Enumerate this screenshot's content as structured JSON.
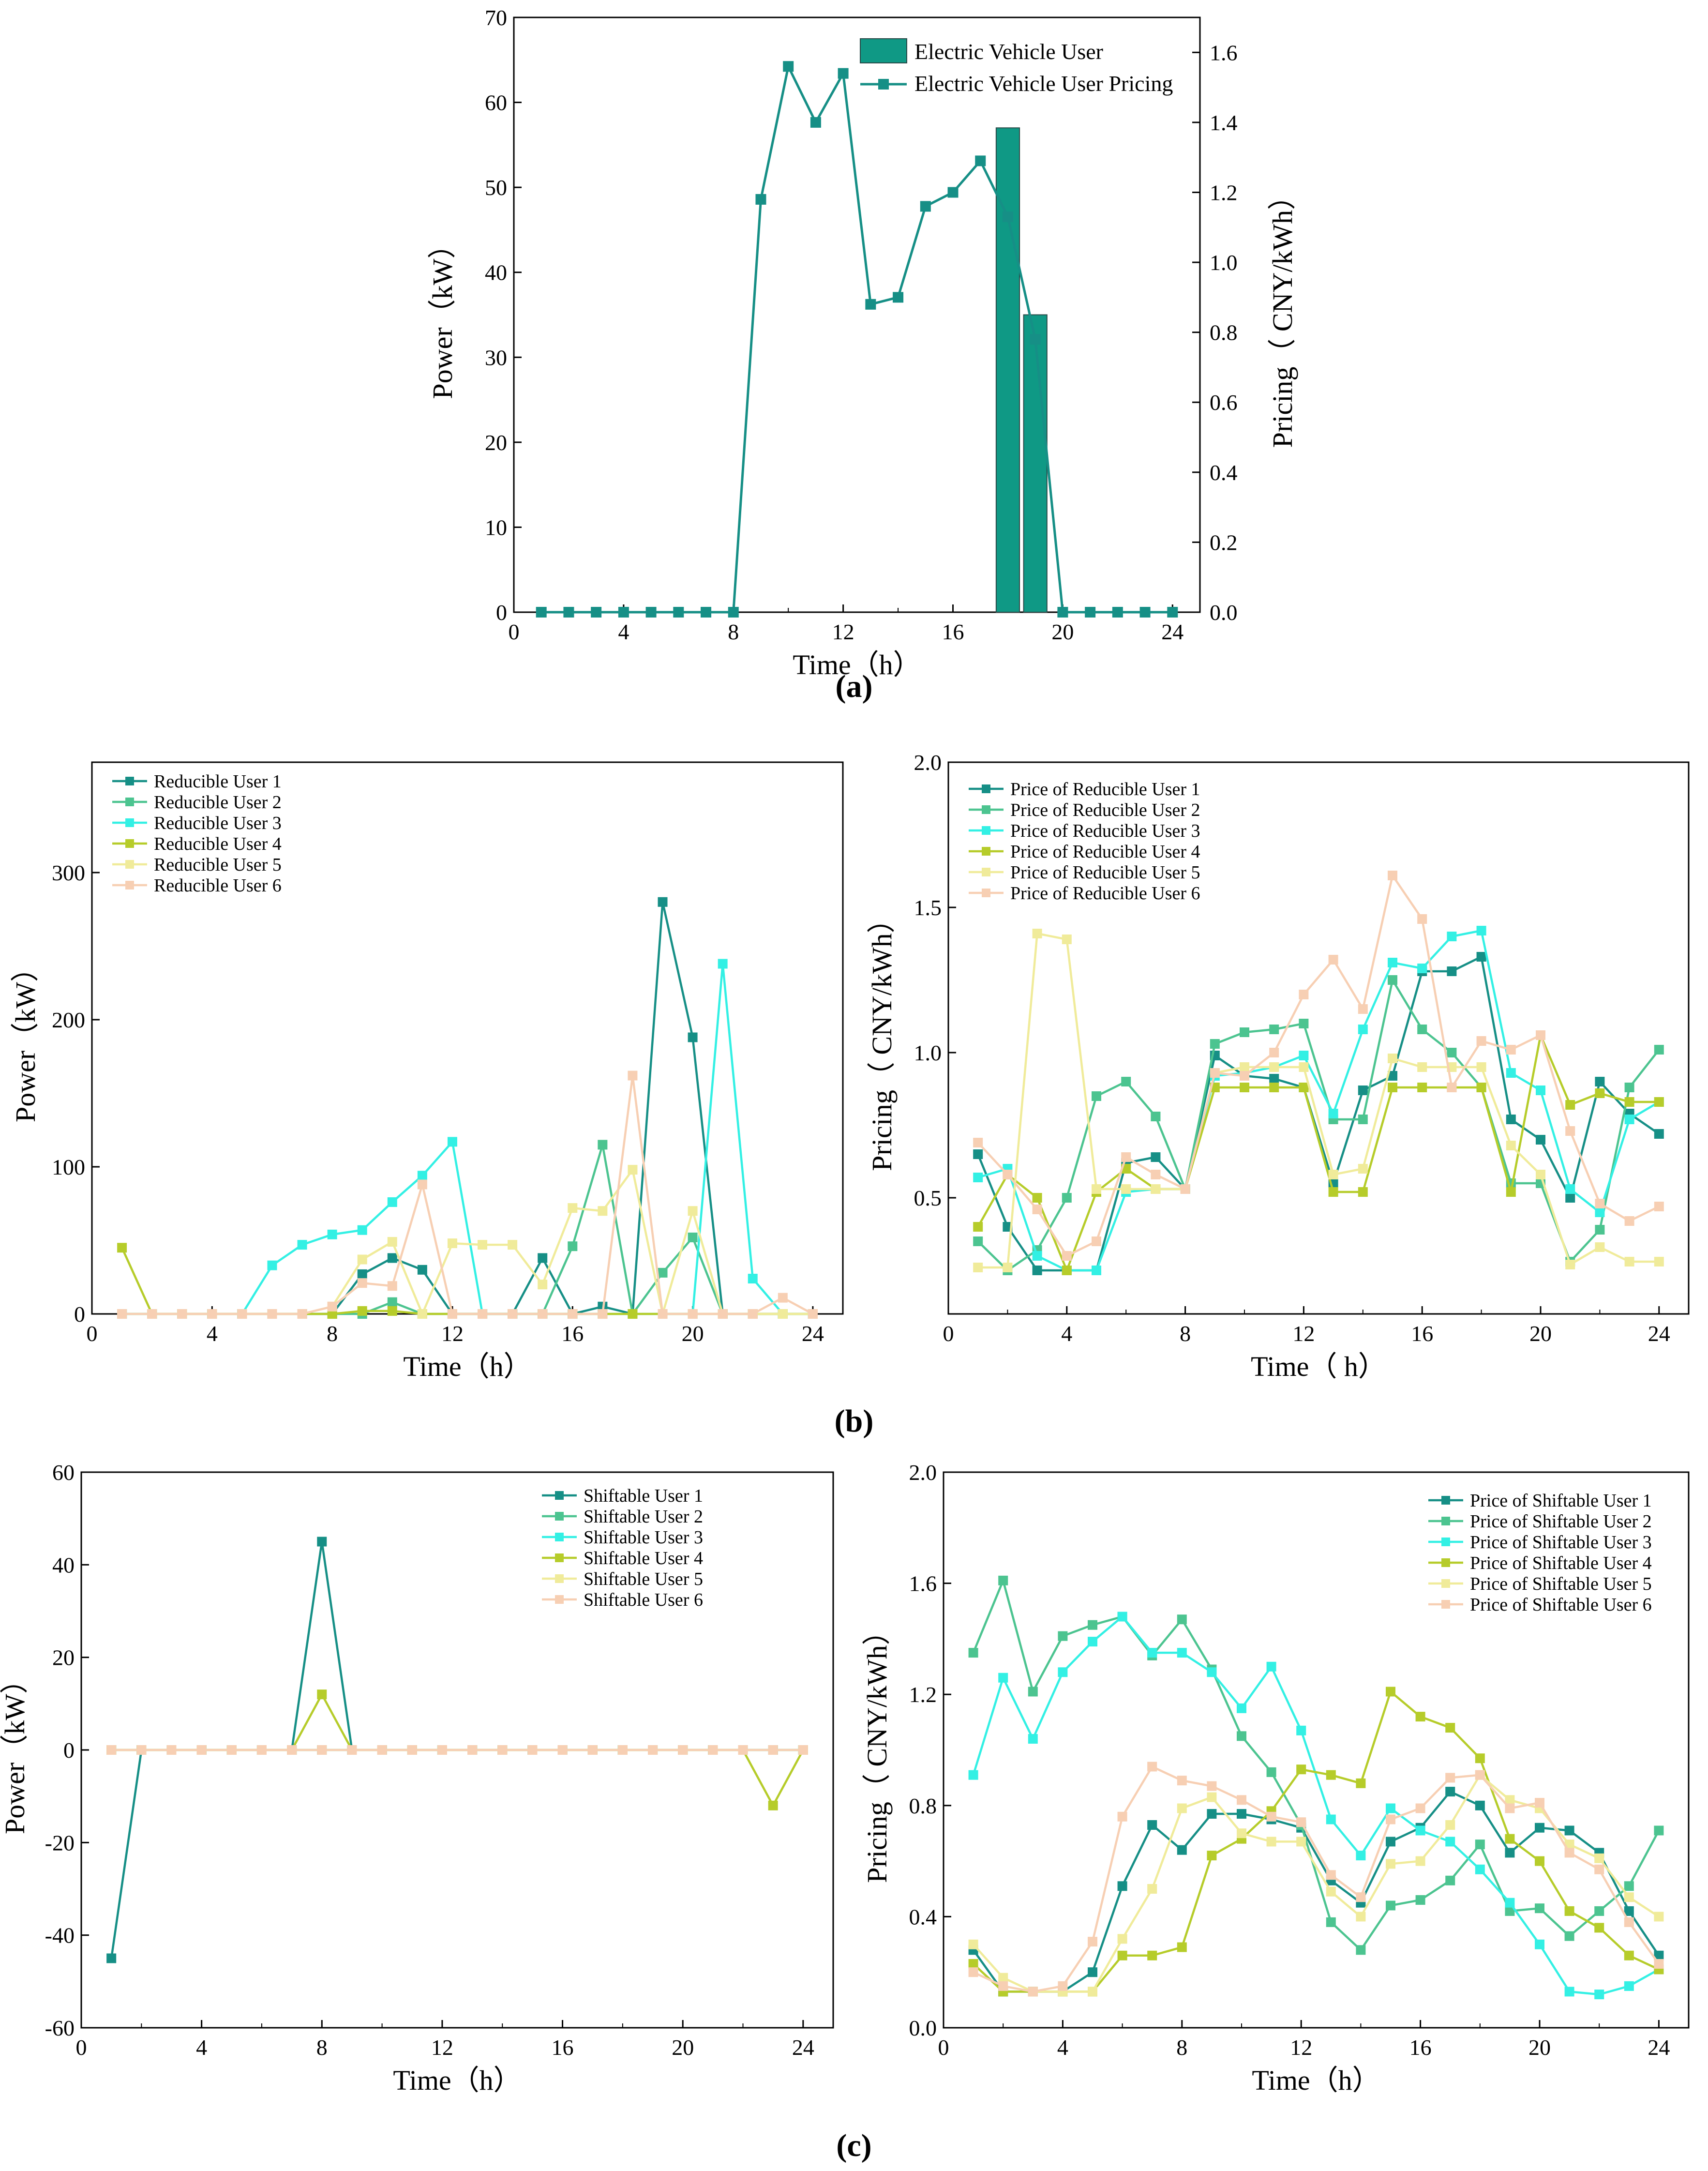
{
  "colors": {
    "palette": [
      "#168f86",
      "#4cc490",
      "#33f0e4",
      "#b6cc2a",
      "#f0eb9a",
      "#f7cfb3"
    ],
    "bar": "#0f9985",
    "bar_edge": "#2a4a48",
    "line_a": "#168f86"
  },
  "chart_data": [
    {
      "id": "a",
      "type": "bar+line",
      "caption": "(a)",
      "xlabel": "Time（h）",
      "ylabel": "Power（kW）",
      "y2label": "Pricing（ CNY/kWh）",
      "xlim": [
        0,
        25
      ],
      "ylim": [
        0,
        70
      ],
      "y2lim": [
        0,
        1.7
      ],
      "xticks": [
        "0",
        "4",
        "8",
        "12",
        "16",
        "20",
        "24"
      ],
      "yticks": [
        "0",
        "10",
        "20",
        "30",
        "40",
        "50",
        "60",
        "70"
      ],
      "y2ticks": [
        "0.0",
        "0.2",
        "0.4",
        "0.6",
        "0.8",
        "1.0",
        "1.2",
        "1.4",
        "1.6"
      ],
      "legend": [
        "Electric Vehicle User",
        "Electric Vehicle User Pricing"
      ],
      "bars": {
        "name": "Electric Vehicle User",
        "x": [
          18,
          19
        ],
        "values": [
          57,
          35
        ]
      },
      "line": {
        "name": "Electric Vehicle User Pricing",
        "x": [
          1,
          2,
          3,
          4,
          5,
          6,
          7,
          8,
          9,
          10,
          11,
          12,
          13,
          14,
          15,
          16,
          17,
          18,
          19,
          20,
          21,
          22,
          23,
          24
        ],
        "values": [
          0,
          0,
          0,
          0,
          0,
          0,
          0,
          0,
          1.18,
          1.56,
          1.4,
          1.54,
          0.88,
          0.9,
          1.16,
          1.2,
          1.29,
          1.13,
          0.78,
          0,
          0,
          0,
          0,
          0
        ]
      }
    },
    {
      "id": "b1",
      "type": "line",
      "caption": "(b)",
      "xlabel": "Time（h）",
      "ylabel": "Power（kW）",
      "xlim": [
        0,
        25
      ],
      "ylim": [
        0,
        375
      ],
      "xticks": [
        "0",
        "4",
        "8",
        "12",
        "16",
        "20",
        "24"
      ],
      "yticks": [
        "0",
        "100",
        "200",
        "300"
      ],
      "legend": [
        "Reducible User 1",
        "Reducible User 2",
        "Reducible User 3",
        "Reducible User 4",
        "Reducible User 5",
        "Reducible User 6"
      ],
      "x": [
        1,
        2,
        3,
        4,
        5,
        6,
        7,
        8,
        9,
        10,
        11,
        12,
        13,
        14,
        15,
        16,
        17,
        18,
        19,
        20,
        21,
        22,
        23,
        24
      ],
      "series": [
        {
          "name": "Reducible User 1",
          "values": [
            0,
            0,
            0,
            0,
            0,
            0,
            0,
            0,
            27,
            38,
            30,
            0,
            0,
            0,
            38,
            0,
            5,
            0,
            280,
            188,
            0,
            0,
            0,
            0
          ]
        },
        {
          "name": "Reducible User 2",
          "values": [
            0,
            0,
            0,
            0,
            0,
            0,
            0,
            0,
            0,
            8,
            0,
            0,
            0,
            0,
            0,
            46,
            115,
            0,
            28,
            52,
            0,
            0,
            0,
            0
          ]
        },
        {
          "name": "Reducible User 3",
          "values": [
            0,
            0,
            0,
            0,
            0,
            33,
            47,
            54,
            57,
            76,
            94,
            117,
            0,
            0,
            0,
            0,
            0,
            0,
            0,
            0,
            238,
            24,
            0,
            0
          ]
        },
        {
          "name": "Reducible User 4",
          "values": [
            45,
            0,
            0,
            0,
            0,
            0,
            0,
            0,
            2,
            2,
            0,
            0,
            0,
            0,
            0,
            0,
            0,
            0,
            0,
            0,
            0,
            0,
            0,
            0
          ]
        },
        {
          "name": "Reducible User 5",
          "values": [
            0,
            0,
            0,
            0,
            0,
            0,
            0,
            5,
            37,
            49,
            0,
            48,
            47,
            47,
            20,
            72,
            70,
            98,
            0,
            70,
            0,
            0,
            0,
            0
          ]
        },
        {
          "name": "Reducible User 6",
          "values": [
            0,
            0,
            0,
            0,
            0,
            0,
            0,
            5,
            21,
            19,
            88,
            0,
            0,
            0,
            0,
            0,
            0,
            162,
            0,
            0,
            0,
            0,
            11,
            0
          ]
        }
      ]
    },
    {
      "id": "b2",
      "type": "line",
      "xlabel": "Time（ h）",
      "ylabel": "Pricing（ CNY/kWh）",
      "xlim": [
        0,
        25
      ],
      "ylim": [
        0.1,
        2.0
      ],
      "xticks": [
        "0",
        "4",
        "8",
        "12",
        "16",
        "20",
        "24"
      ],
      "yticks": [
        "0.5",
        "1.0",
        "1.5",
        "2.0"
      ],
      "legend": [
        "Price of Reducible User 1",
        "Price of Reducible User 2",
        "Price of Reducible User 3",
        "Price of Reducible User 4",
        "Price of Reducible User 5",
        "Price of Reducible User 6"
      ],
      "x": [
        1,
        2,
        3,
        4,
        5,
        6,
        7,
        8,
        9,
        10,
        11,
        12,
        13,
        14,
        15,
        16,
        17,
        18,
        19,
        20,
        21,
        22,
        23,
        24
      ],
      "series": [
        {
          "name": "Price of Reducible User 1",
          "values": [
            0.65,
            0.4,
            0.25,
            0.25,
            0.25,
            0.62,
            0.64,
            0.53,
            0.99,
            0.92,
            0.91,
            0.88,
            0.55,
            0.87,
            0.92,
            1.28,
            1.28,
            1.33,
            0.77,
            0.7,
            0.5,
            0.9,
            0.79,
            0.72
          ]
        },
        {
          "name": "Price of Reducible User 2",
          "values": [
            0.35,
            0.25,
            0.32,
            0.5,
            0.85,
            0.9,
            0.78,
            0.53,
            1.03,
            1.07,
            1.08,
            1.1,
            0.77,
            0.77,
            1.25,
            1.08,
            1.0,
            0.88,
            0.55,
            0.55,
            0.28,
            0.39,
            0.88,
            1.01
          ]
        },
        {
          "name": "Price of Reducible User 3",
          "values": [
            0.57,
            0.6,
            0.3,
            0.25,
            0.25,
            0.52,
            0.53,
            0.53,
            0.92,
            0.93,
            0.95,
            0.99,
            0.79,
            1.08,
            1.31,
            1.29,
            1.4,
            1.42,
            0.93,
            0.87,
            0.53,
            0.45,
            0.77,
            0.83
          ]
        },
        {
          "name": "Price of Reducible User 4",
          "values": [
            0.4,
            0.58,
            0.5,
            0.25,
            0.52,
            0.6,
            0.53,
            0.53,
            0.88,
            0.88,
            0.88,
            0.88,
            0.52,
            0.52,
            0.88,
            0.88,
            0.88,
            0.88,
            0.52,
            1.06,
            0.82,
            0.86,
            0.83,
            0.83
          ]
        },
        {
          "name": "Price of Reducible User 5",
          "values": [
            0.26,
            0.26,
            1.41,
            1.39,
            0.53,
            0.53,
            0.53,
            0.53,
            0.93,
            0.95,
            0.95,
            0.95,
            0.58,
            0.6,
            0.98,
            0.95,
            0.95,
            0.95,
            0.68,
            0.58,
            0.27,
            0.33,
            0.28,
            0.28
          ]
        },
        {
          "name": "Price of Reducible User 6",
          "values": [
            0.69,
            0.58,
            0.46,
            0.3,
            0.35,
            0.64,
            0.58,
            0.53,
            0.93,
            0.92,
            1.0,
            1.2,
            1.32,
            1.15,
            1.61,
            1.46,
            0.88,
            1.04,
            1.01,
            1.06,
            0.73,
            0.48,
            0.42,
            0.47
          ]
        }
      ]
    },
    {
      "id": "c1",
      "type": "line",
      "caption": "(c)",
      "xlabel": "Time（h）",
      "ylabel": "Power（kW）",
      "xlim": [
        0,
        25
      ],
      "ylim": [
        -60,
        60
      ],
      "xticks": [
        "0",
        "4",
        "8",
        "12",
        "16",
        "20",
        "24"
      ],
      "yticks": [
        "-60",
        "-40",
        "-20",
        "0",
        "20",
        "40",
        "60"
      ],
      "legend": [
        "Shiftable User 1",
        "Shiftable User 2",
        "Shiftable User 3",
        "Shiftable User 4",
        "Shiftable User 5",
        "Shiftable User 6"
      ],
      "x": [
        1,
        2,
        3,
        4,
        5,
        6,
        7,
        8,
        9,
        10,
        11,
        12,
        13,
        14,
        15,
        16,
        17,
        18,
        19,
        20,
        21,
        22,
        23,
        24
      ],
      "series": [
        {
          "name": "Shiftable User 1",
          "values": [
            -45,
            0,
            0,
            0,
            0,
            0,
            0,
            45,
            0,
            0,
            0,
            0,
            0,
            0,
            0,
            0,
            0,
            0,
            0,
            0,
            0,
            0,
            0,
            0
          ]
        },
        {
          "name": "Shiftable User 2",
          "values": [
            0,
            0,
            0,
            0,
            0,
            0,
            0,
            0,
            0,
            0,
            0,
            0,
            0,
            0,
            0,
            0,
            0,
            0,
            0,
            0,
            0,
            0,
            0,
            0
          ]
        },
        {
          "name": "Shiftable User 3",
          "values": [
            0,
            0,
            0,
            0,
            0,
            0,
            0,
            0,
            0,
            0,
            0,
            0,
            0,
            0,
            0,
            0,
            0,
            0,
            0,
            0,
            0,
            0,
            0,
            0
          ]
        },
        {
          "name": "Shiftable User 4",
          "values": [
            0,
            0,
            0,
            0,
            0,
            0,
            0,
            12,
            0,
            0,
            0,
            0,
            0,
            0,
            0,
            0,
            0,
            0,
            0,
            0,
            0,
            0,
            -12,
            0
          ]
        },
        {
          "name": "Shiftable User 5",
          "values": [
            0,
            0,
            0,
            0,
            0,
            0,
            0,
            0,
            0,
            0,
            0,
            0,
            0,
            0,
            0,
            0,
            0,
            0,
            0,
            0,
            0,
            0,
            0,
            0
          ]
        },
        {
          "name": "Shiftable User 6",
          "values": [
            0,
            0,
            0,
            0,
            0,
            0,
            0,
            0,
            0,
            0,
            0,
            0,
            0,
            0,
            0,
            0,
            0,
            0,
            0,
            0,
            0,
            0,
            0,
            0
          ]
        }
      ]
    },
    {
      "id": "c2",
      "type": "line",
      "xlabel": "Time（h）",
      "ylabel": "Pricing（ CNY/kWh）",
      "xlim": [
        0,
        25
      ],
      "ylim": [
        0.0,
        2.0
      ],
      "xticks": [
        "0",
        "4",
        "8",
        "12",
        "16",
        "20",
        "24"
      ],
      "yticks": [
        "0.0",
        "0.4",
        "0.8",
        "1.2",
        "1.6",
        "2.0"
      ],
      "legend": [
        "Price of Shiftable User 1",
        "Price of Shiftable User 2",
        "Price of Shiftable User 3",
        "Price of Shiftable User 4",
        "Price of Shiftable User 5",
        "Price of Shiftable User 6"
      ],
      "x": [
        1,
        2,
        3,
        4,
        5,
        6,
        7,
        8,
        9,
        10,
        11,
        12,
        13,
        14,
        15,
        16,
        17,
        18,
        19,
        20,
        21,
        22,
        23,
        24
      ],
      "series": [
        {
          "name": "Price of Shiftable User 1",
          "values": [
            0.28,
            0.13,
            0.13,
            0.13,
            0.2,
            0.51,
            0.73,
            0.64,
            0.77,
            0.77,
            0.75,
            0.72,
            0.53,
            0.45,
            0.67,
            0.72,
            0.85,
            0.8,
            0.63,
            0.72,
            0.71,
            0.63,
            0.42,
            0.26
          ]
        },
        {
          "name": "Price of Shiftable User 2",
          "values": [
            1.35,
            1.61,
            1.21,
            1.41,
            1.45,
            1.48,
            1.34,
            1.47,
            1.29,
            1.05,
            0.92,
            0.73,
            0.38,
            0.28,
            0.44,
            0.46,
            0.53,
            0.66,
            0.42,
            0.43,
            0.33,
            0.42,
            0.51,
            0.71
          ]
        },
        {
          "name": "Price of Shiftable User 3",
          "values": [
            0.91,
            1.26,
            1.04,
            1.28,
            1.39,
            1.48,
            1.35,
            1.35,
            1.28,
            1.15,
            1.3,
            1.07,
            0.75,
            0.62,
            0.79,
            0.71,
            0.67,
            0.57,
            0.45,
            0.3,
            0.13,
            0.12,
            0.15,
            0.21
          ]
        },
        {
          "name": "Price of Shiftable User 4",
          "values": [
            0.23,
            0.13,
            0.13,
            0.13,
            0.13,
            0.26,
            0.26,
            0.29,
            0.62,
            0.68,
            0.78,
            0.93,
            0.91,
            0.88,
            1.21,
            1.12,
            1.08,
            0.97,
            0.68,
            0.6,
            0.42,
            0.36,
            0.26,
            0.21
          ]
        },
        {
          "name": "Price of Shiftable User 5",
          "values": [
            0.3,
            0.18,
            0.13,
            0.13,
            0.13,
            0.32,
            0.5,
            0.79,
            0.83,
            0.7,
            0.67,
            0.67,
            0.49,
            0.4,
            0.59,
            0.6,
            0.73,
            0.91,
            0.82,
            0.79,
            0.66,
            0.61,
            0.47,
            0.4
          ]
        },
        {
          "name": "Price of Shiftable User 6",
          "values": [
            0.2,
            0.15,
            0.13,
            0.15,
            0.31,
            0.76,
            0.94,
            0.89,
            0.87,
            0.82,
            0.76,
            0.74,
            0.55,
            0.47,
            0.75,
            0.79,
            0.9,
            0.91,
            0.79,
            0.81,
            0.63,
            0.57,
            0.38,
            0.23
          ]
        }
      ]
    }
  ]
}
